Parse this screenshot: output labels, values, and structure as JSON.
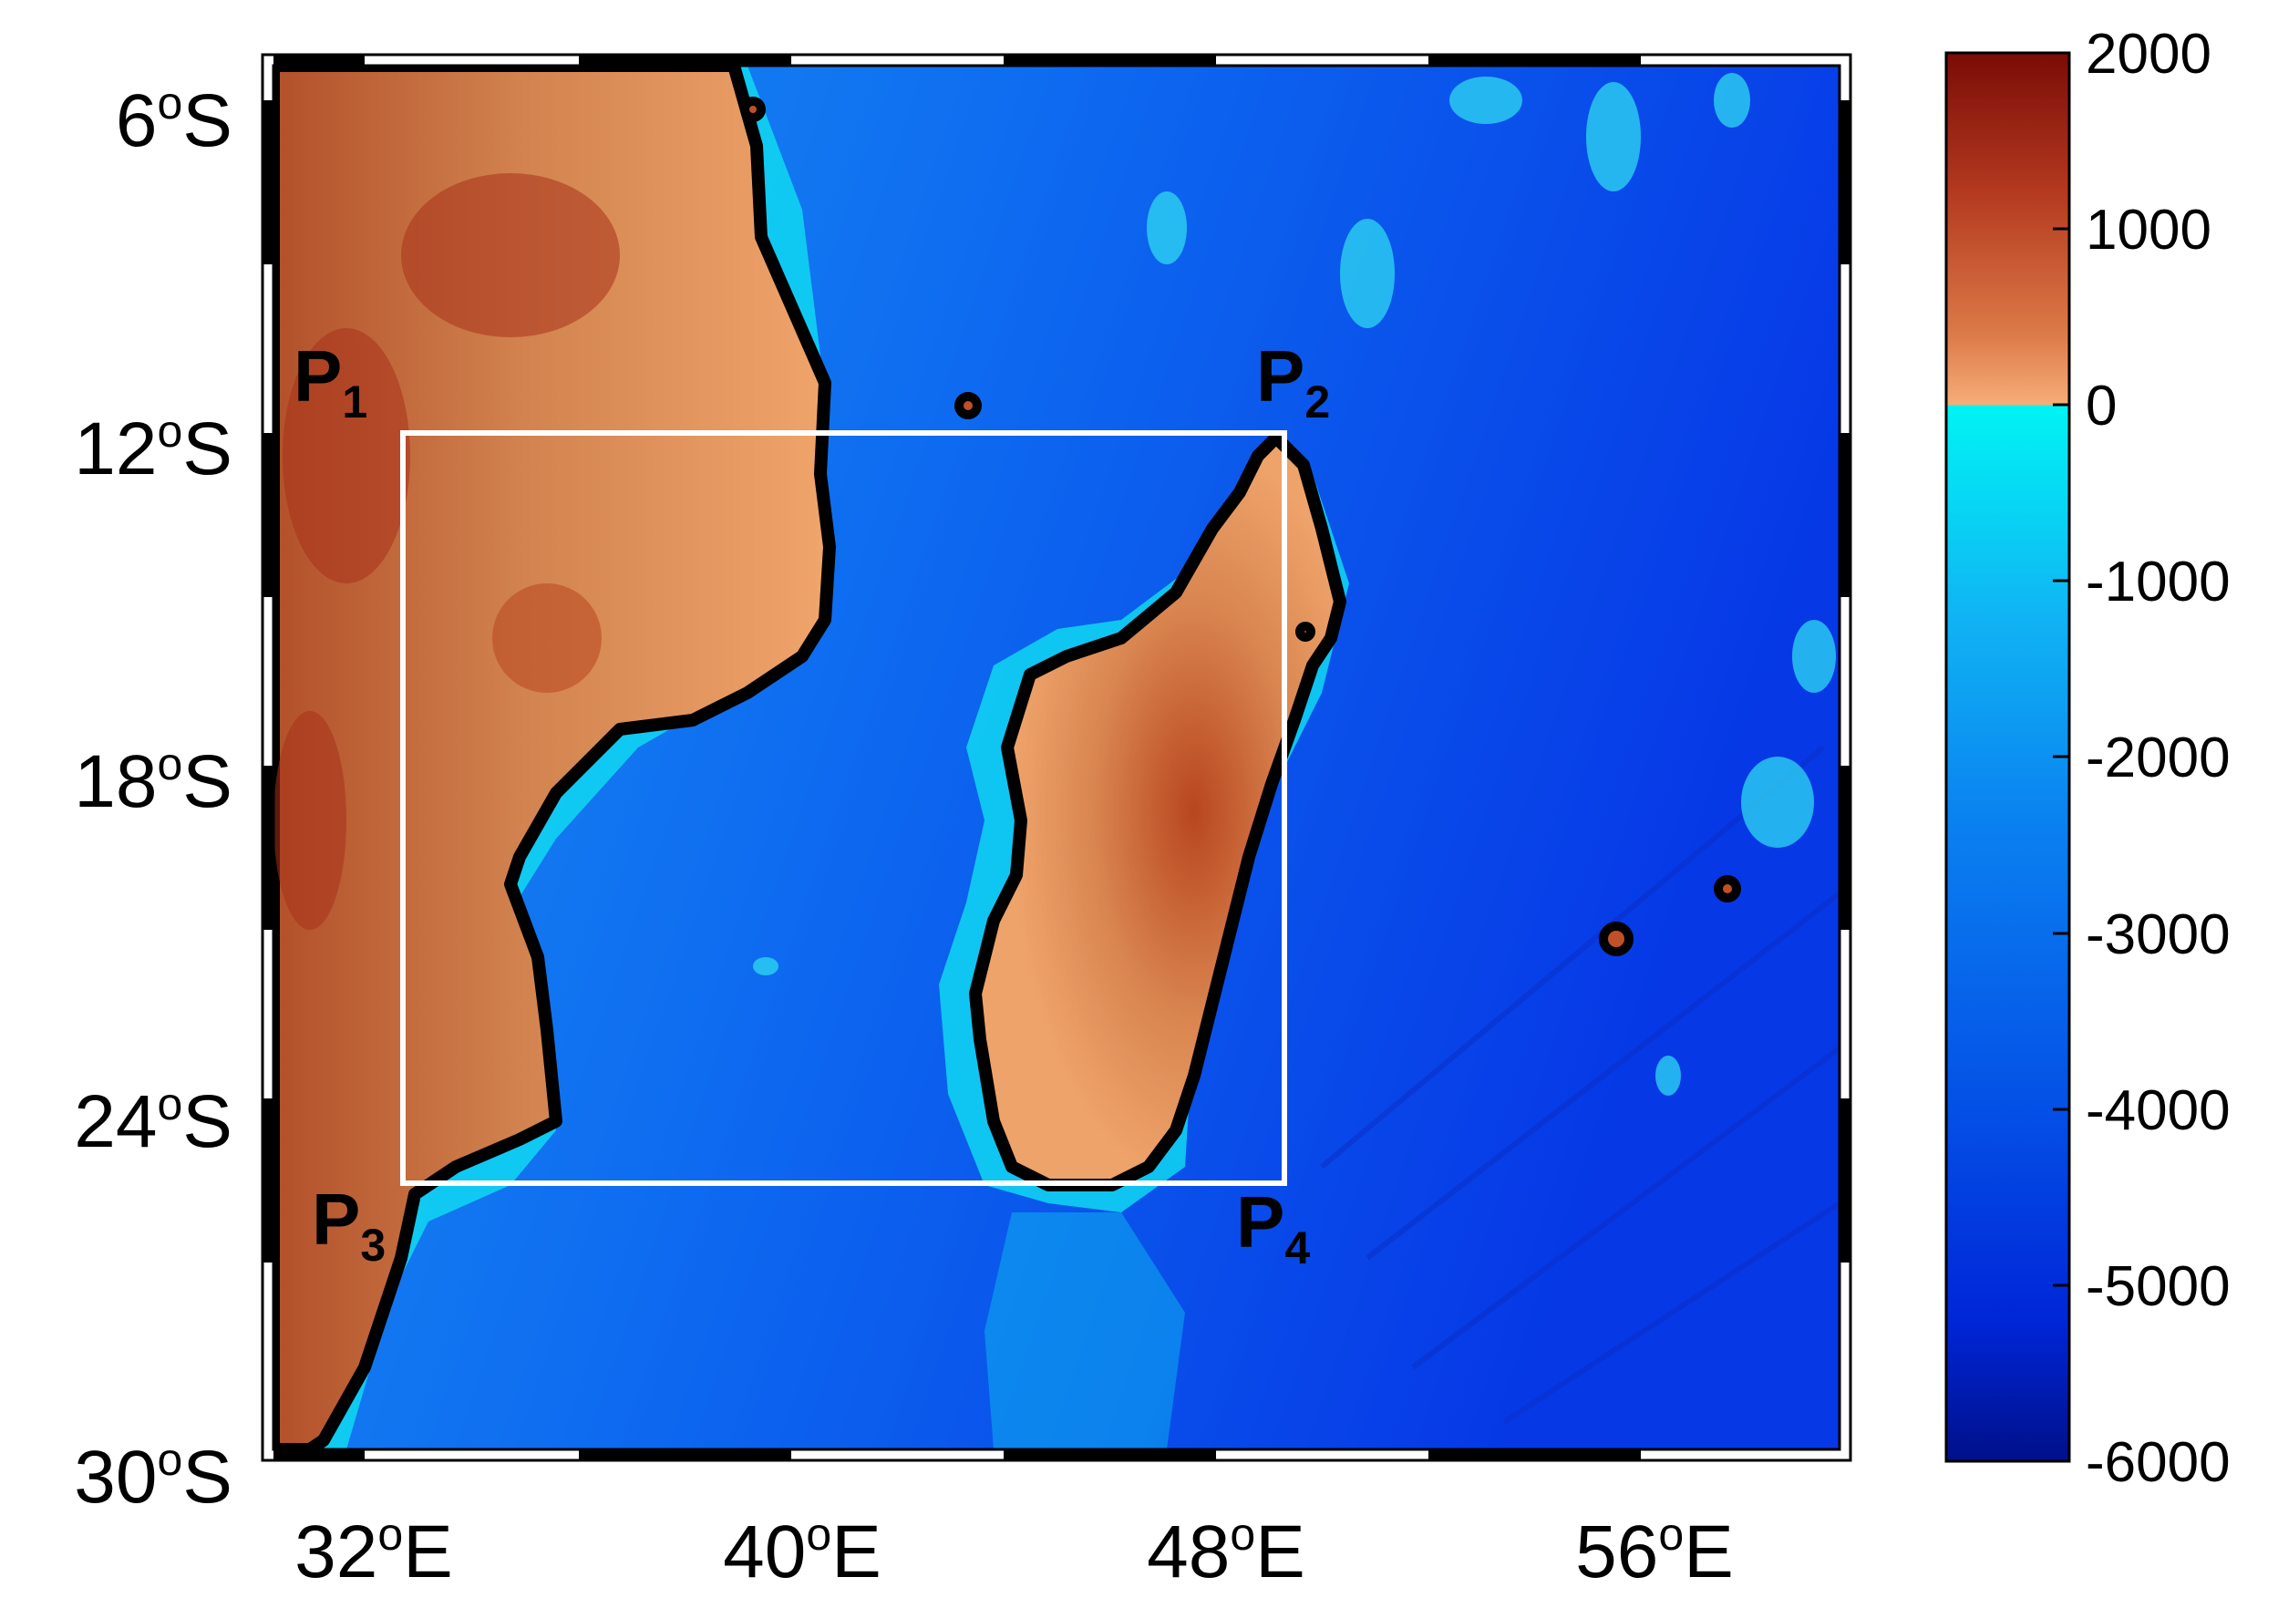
{
  "map": {
    "lat_ticks": [
      {
        "deg": "6",
        "sup": "o",
        "hemi": "S"
      },
      {
        "deg": "12",
        "sup": "o",
        "hemi": "S"
      },
      {
        "deg": "18",
        "sup": "o",
        "hemi": "S"
      },
      {
        "deg": "24",
        "sup": "o",
        "hemi": "S"
      },
      {
        "deg": "30",
        "sup": "o",
        "hemi": "S"
      }
    ],
    "lon_ticks": [
      {
        "deg": "32",
        "sup": "o",
        "hemi": "E"
      },
      {
        "deg": "40",
        "sup": "o",
        "hemi": "E"
      },
      {
        "deg": "48",
        "sup": "o",
        "hemi": "E"
      },
      {
        "deg": "56",
        "sup": "o",
        "hemi": "E"
      }
    ],
    "points": [
      {
        "letter": "P",
        "sub": "1"
      },
      {
        "letter": "P",
        "sub": "2"
      },
      {
        "letter": "P",
        "sub": "3"
      },
      {
        "letter": "P",
        "sub": "4"
      }
    ],
    "colors": {
      "land_light": "#f2a56a",
      "land_mid": "#d97a45",
      "land_dark": "#a8321a",
      "shelf": "#00e8f0",
      "ocean_mid": "#0a86f0",
      "ocean_deep": "#0030e0",
      "coast": "#000000",
      "box": "#ffffff"
    }
  },
  "colorbar": {
    "ticks": [
      "2000",
      "1000",
      "0",
      "-1000",
      "-2000",
      "-3000",
      "-4000",
      "-5000",
      "-6000"
    ],
    "range": [
      -6000,
      2000
    ]
  }
}
